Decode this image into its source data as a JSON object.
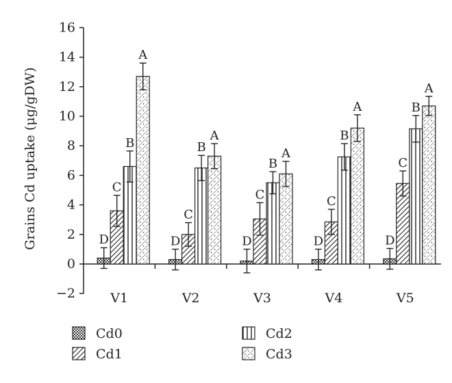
{
  "chart_data": {
    "type": "bar",
    "ylabel": "Grains Cd uptake (μg/gDW)",
    "ylim": [
      -2,
      16
    ],
    "yticks": [
      -2,
      0,
      2,
      4,
      6,
      8,
      10,
      12,
      14,
      16
    ],
    "categories": [
      "V1",
      "V2",
      "V3",
      "V4",
      "V5"
    ],
    "series": [
      {
        "name": "Cd0",
        "pattern": "checker",
        "values": [
          0.4,
          0.3,
          0.2,
          0.3,
          0.35
        ],
        "errors": [
          0.7,
          0.7,
          0.8,
          0.7,
          0.7
        ],
        "letters": [
          "D",
          "D",
          "D",
          "D",
          "D"
        ]
      },
      {
        "name": "Cd1",
        "pattern": "diag-dense",
        "values": [
          3.6,
          2.0,
          3.05,
          2.85,
          5.45
        ],
        "errors": [
          1.05,
          0.8,
          1.1,
          0.85,
          0.85
        ],
        "letters": [
          "C",
          "C",
          "C",
          "C",
          "C"
        ]
      },
      {
        "name": "Cd2",
        "pattern": "vertical",
        "values": [
          6.6,
          6.5,
          5.5,
          7.25,
          9.15
        ],
        "errors": [
          1.05,
          0.85,
          0.75,
          0.9,
          0.9
        ],
        "letters": [
          "B",
          "B",
          "B",
          "B",
          "B"
        ]
      },
      {
        "name": "Cd3",
        "pattern": "diag-light",
        "values": [
          12.7,
          7.3,
          6.1,
          9.2,
          10.7
        ],
        "errors": [
          0.9,
          0.85,
          0.85,
          0.9,
          0.65
        ],
        "letters": [
          "A",
          "A",
          "A",
          "A",
          "A"
        ]
      }
    ],
    "grid": false,
    "legend_position": "bottom"
  }
}
